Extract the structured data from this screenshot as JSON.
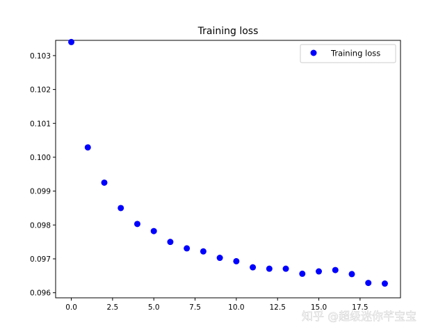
{
  "chart_data": {
    "type": "scatter",
    "title": "Training loss",
    "xlabel": "",
    "ylabel": "",
    "xlim": [
      -0.95,
      19.95
    ],
    "ylim": [
      0.09585,
      0.10345
    ],
    "xticks": [
      0.0,
      2.5,
      5.0,
      7.5,
      10.0,
      12.5,
      15.0,
      17.5
    ],
    "xtick_labels": [
      "0.0",
      "2.5",
      "5.0",
      "7.5",
      "10.0",
      "12.5",
      "15.0",
      "17.5"
    ],
    "yticks": [
      0.096,
      0.097,
      0.098,
      0.099,
      0.1,
      0.101,
      0.102,
      0.103
    ],
    "ytick_labels": [
      "0.096",
      "0.097",
      "0.098",
      "0.099",
      "0.100",
      "0.101",
      "0.102",
      "0.103"
    ],
    "grid": false,
    "legend_position": "top-right",
    "series": [
      {
        "name": "Training loss",
        "color": "#0000ff",
        "marker": "circle",
        "x": [
          0,
          1,
          2,
          3,
          4,
          5,
          6,
          7,
          8,
          9,
          10,
          11,
          12,
          13,
          14,
          15,
          16,
          17,
          18,
          19
        ],
        "y": [
          0.1034,
          0.10029,
          0.09925,
          0.0985,
          0.09803,
          0.09782,
          0.0975,
          0.09731,
          0.09722,
          0.09703,
          0.09693,
          0.09675,
          0.09671,
          0.09671,
          0.09656,
          0.09663,
          0.09667,
          0.09655,
          0.09629,
          0.09627
        ]
      }
    ]
  },
  "watermark": "知乎 @超级迷你芊宝宝"
}
